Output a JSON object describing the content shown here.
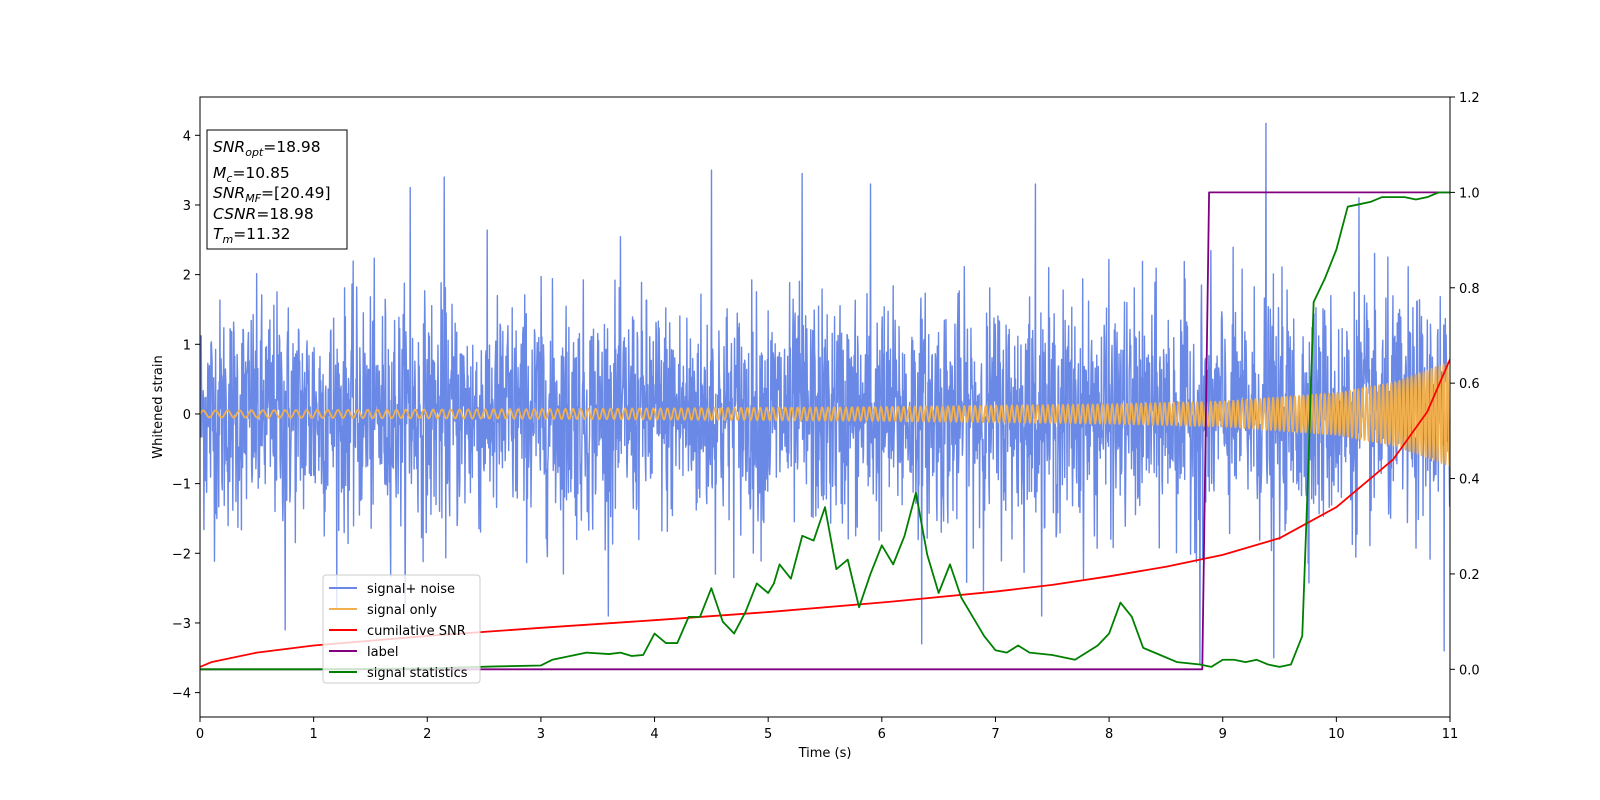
{
  "chart_data": {
    "type": "line",
    "title": "",
    "xlabel": "Time (s)",
    "ylabel": "Whitened strain",
    "xlim": [
      0,
      11
    ],
    "ylim": [
      -4.35,
      4.55
    ],
    "y2lim": [
      -0.1,
      1.2
    ],
    "grid": false,
    "legend_position": "lower-left",
    "x_ticks": [
      "0",
      "1",
      "2",
      "3",
      "4",
      "5",
      "6",
      "7",
      "8",
      "9",
      "10",
      "11"
    ],
    "y_ticks": [
      "4",
      "3",
      "2",
      "1",
      "0",
      "−1",
      "−2",
      "−3",
      "−4"
    ],
    "y2_ticks": [
      "1.2",
      "1.0",
      "0.8",
      "0.6",
      "0.4",
      "0.2",
      "0.0"
    ],
    "annotation": [
      {
        "sym": "SNR",
        "sub": "opt",
        "value": "=18.98"
      },
      {
        "sym": "M",
        "sub": "c",
        "value": "=10.85"
      },
      {
        "sym": "SNR",
        "sub": "MF",
        "value": "=[20.49]"
      },
      {
        "sym": "CSNR",
        "sub": "",
        "value": "=18.98"
      },
      {
        "sym": "T",
        "sub": "m",
        "value": "=11.32"
      }
    ],
    "series": [
      {
        "name": "signal+ noise",
        "color": "#6a88e6",
        "axis": "left",
        "kind": "noise",
        "x_range": [
          0,
          11
        ],
        "typical_amplitude": 1.3,
        "peak_spikes": [
          [
            0.75,
            -3.1
          ],
          [
            1.85,
            3.25
          ],
          [
            2.15,
            3.4
          ],
          [
            4.5,
            3.5
          ],
          [
            5.3,
            3.45
          ],
          [
            5.9,
            3.3
          ],
          [
            6.35,
            -3.3
          ],
          [
            7.35,
            3.3
          ],
          [
            8.8,
            -3.6
          ],
          [
            9.38,
            4.17
          ],
          [
            9.45,
            -3.5
          ],
          [
            10.2,
            3.1
          ],
          [
            10.95,
            -3.4
          ]
        ]
      },
      {
        "name": "signal only",
        "color": "#f0b050",
        "axis": "left",
        "kind": "chirp",
        "envelope": [
          [
            0,
            0.05
          ],
          [
            3,
            0.07
          ],
          [
            6,
            0.1
          ],
          [
            8,
            0.14
          ],
          [
            9,
            0.18
          ],
          [
            10,
            0.3
          ],
          [
            10.5,
            0.45
          ],
          [
            11,
            0.75
          ]
        ]
      },
      {
        "name": "cumilative SNR",
        "color": "#ff0000",
        "axis": "right",
        "x": [
          0,
          0.1,
          0.5,
          1,
          2,
          3,
          4,
          5,
          6,
          7,
          7.5,
          8,
          8.5,
          9,
          9.5,
          10,
          10.5,
          10.8,
          11
        ],
        "y": [
          0.005,
          0.015,
          0.035,
          0.05,
          0.07,
          0.087,
          0.103,
          0.12,
          0.14,
          0.163,
          0.177,
          0.195,
          0.215,
          0.24,
          0.275,
          0.34,
          0.44,
          0.54,
          0.65
        ]
      },
      {
        "name": "label",
        "color": "#800080",
        "axis": "right",
        "x": [
          0,
          8.82,
          8.88,
          11
        ],
        "y": [
          0,
          0,
          1,
          1
        ]
      },
      {
        "name": "signal statistics",
        "color": "#008000",
        "axis": "right",
        "x": [
          0,
          1,
          2,
          2.3,
          2.6,
          3,
          3.1,
          3.2,
          3.4,
          3.6,
          3.7,
          3.8,
          3.9,
          4,
          4.1,
          4.2,
          4.3,
          4.4,
          4.5,
          4.6,
          4.7,
          4.8,
          4.9,
          5,
          5.05,
          5.1,
          5.2,
          5.3,
          5.4,
          5.5,
          5.6,
          5.7,
          5.8,
          5.9,
          6,
          6.1,
          6.2,
          6.3,
          6.4,
          6.5,
          6.6,
          6.7,
          6.8,
          6.9,
          7,
          7.1,
          7.2,
          7.3,
          7.5,
          7.7,
          7.9,
          8,
          8.1,
          8.2,
          8.3,
          8.4,
          8.6,
          8.8,
          8.9,
          9,
          9.1,
          9.2,
          9.3,
          9.4,
          9.5,
          9.6,
          9.7,
          9.75,
          9.8,
          9.9,
          10,
          10.1,
          10.2,
          10.3,
          10.4,
          10.5,
          10.6,
          10.7,
          10.8,
          10.9,
          11
        ],
        "y": [
          0,
          0,
          0.002,
          0.004,
          0.006,
          0.008,
          0.02,
          0.025,
          0.035,
          0.032,
          0.035,
          0.028,
          0.03,
          0.075,
          0.055,
          0.055,
          0.11,
          0.11,
          0.17,
          0.1,
          0.075,
          0.12,
          0.18,
          0.16,
          0.18,
          0.22,
          0.19,
          0.28,
          0.27,
          0.34,
          0.21,
          0.23,
          0.13,
          0.2,
          0.26,
          0.22,
          0.28,
          0.37,
          0.24,
          0.16,
          0.22,
          0.15,
          0.11,
          0.07,
          0.04,
          0.035,
          0.05,
          0.035,
          0.03,
          0.02,
          0.05,
          0.075,
          0.14,
          0.11,
          0.045,
          0.035,
          0.015,
          0.01,
          0.005,
          0.02,
          0.02,
          0.015,
          0.02,
          0.01,
          0.005,
          0.01,
          0.07,
          0.4,
          0.77,
          0.82,
          0.88,
          0.97,
          0.975,
          0.98,
          0.99,
          0.99,
          0.99,
          0.985,
          0.99,
          1.0,
          1.0
        ]
      }
    ]
  }
}
